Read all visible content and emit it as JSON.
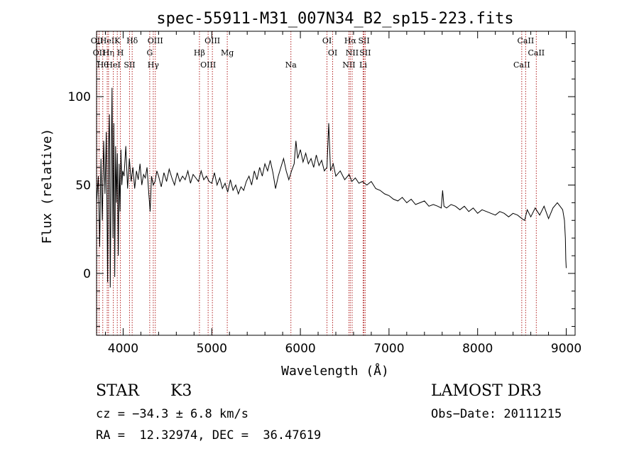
{
  "chart_data": {
    "type": "line",
    "title": "spec-55911-M31_007N34_B2_sp15-223.fits",
    "xlabel": "Wavelength (Å)",
    "ylabel": "Flux (relative)",
    "xlim": [
      3700,
      9100
    ],
    "ylim": [
      -35,
      137
    ],
    "xticks": [
      4000,
      5000,
      6000,
      7000,
      8000,
      9000
    ],
    "yticks": [
      0,
      50,
      100
    ],
    "grid": false,
    "line_color": "#000000",
    "marker_color": "#b22222",
    "series": [
      {
        "x": [
          3700,
          3720,
          3735,
          3750,
          3765,
          3780,
          3795,
          3810,
          3825,
          3835,
          3845,
          3855,
          3865,
          3875,
          3885,
          3895,
          3905,
          3915,
          3925,
          3935,
          3945,
          3955,
          3965,
          3975,
          3985,
          3995,
          4010,
          4030,
          4050,
          4070,
          4090,
          4110,
          4130,
          4150,
          4170,
          4190,
          4210,
          4230,
          4250,
          4270,
          4290,
          4305,
          4320,
          4340,
          4360,
          4380,
          4400,
          4430,
          4460,
          4490,
          4520,
          4550,
          4580,
          4610,
          4640,
          4670,
          4700,
          4730,
          4760,
          4790,
          4820,
          4850,
          4880,
          4910,
          4940,
          4970,
          5000,
          5030,
          5060,
          5090,
          5120,
          5150,
          5180,
          5210,
          5240,
          5270,
          5300,
          5330,
          5360,
          5390,
          5420,
          5450,
          5480,
          5510,
          5540,
          5570,
          5600,
          5630,
          5660,
          5690,
          5720,
          5750,
          5780,
          5810,
          5840,
          5870,
          5900,
          5930,
          5950,
          5970,
          6000,
          6030,
          6060,
          6090,
          6120,
          6150,
          6180,
          6210,
          6240,
          6270,
          6300,
          6320,
          6340,
          6370,
          6400,
          6450,
          6500,
          6550,
          6580,
          6620,
          6660,
          6700,
          6750,
          6800,
          6850,
          6900,
          6950,
          7000,
          7050,
          7100,
          7150,
          7200,
          7250,
          7300,
          7350,
          7400,
          7450,
          7500,
          7550,
          7590,
          7605,
          7620,
          7650,
          7700,
          7750,
          7800,
          7850,
          7900,
          7950,
          8000,
          8050,
          8100,
          8150,
          8200,
          8250,
          8300,
          8350,
          8400,
          8450,
          8500,
          8530,
          8560,
          8600,
          8650,
          8700,
          8750,
          8800,
          8850,
          8900,
          8930,
          8960,
          8980,
          8990,
          8995,
          9000
        ],
        "y": [
          40,
          55,
          15,
          65,
          30,
          75,
          45,
          80,
          -5,
          70,
          90,
          -8,
          60,
          105,
          20,
          85,
          -2,
          72,
          40,
          68,
          10,
          62,
          35,
          70,
          50,
          58,
          55,
          72,
          48,
          65,
          52,
          60,
          48,
          58,
          53,
          62,
          50,
          56,
          54,
          60,
          45,
          35,
          55,
          50,
          52,
          58,
          55,
          49,
          57,
          52,
          59,
          54,
          50,
          57,
          52,
          55,
          53,
          58,
          51,
          56,
          54,
          52,
          58,
          53,
          55,
          52,
          51,
          57,
          50,
          54,
          48,
          51,
          46,
          53,
          47,
          50,
          45,
          49,
          47,
          52,
          55,
          50,
          58,
          53,
          60,
          55,
          62,
          58,
          64,
          57,
          48,
          55,
          60,
          65,
          58,
          53,
          58,
          62,
          75,
          65,
          70,
          63,
          68,
          62,
          65,
          60,
          67,
          61,
          64,
          58,
          60,
          85,
          58,
          62,
          55,
          58,
          53,
          56,
          52,
          54,
          51,
          52,
          50,
          52,
          48,
          47,
          45,
          44,
          42,
          41,
          43,
          40,
          42,
          39,
          40,
          41,
          38,
          39,
          38,
          37,
          47,
          38,
          37,
          39,
          38,
          36,
          38,
          35,
          37,
          34,
          36,
          35,
          34,
          33,
          35,
          34,
          32,
          34,
          33,
          31,
          30,
          36,
          32,
          37,
          33,
          38,
          31,
          37,
          40,
          38,
          36,
          30,
          20,
          8,
          3
        ]
      }
    ],
    "markers": [
      {
        "x": 3705,
        "label": "OII"
      },
      {
        "x": 3728,
        "label": "OII"
      },
      {
        "x": 3770,
        "label": "Hθ"
      },
      {
        "x": 3820,
        "label": "HeI"
      },
      {
        "x": 3835,
        "label": "Hη"
      },
      {
        "x": 3889,
        "label": "HeI"
      },
      {
        "x": 3934,
        "label": "K"
      },
      {
        "x": 3969,
        "label": "H"
      },
      {
        "x": 4072,
        "label": "SII"
      },
      {
        "x": 4102,
        "label": "Hδ"
      },
      {
        "x": 4300,
        "label": "G"
      },
      {
        "x": 4340,
        "label": "Hγ"
      },
      {
        "x": 4363,
        "label": "OIII"
      },
      {
        "x": 4861,
        "label": "Hβ"
      },
      {
        "x": 4959,
        "label": "OIII"
      },
      {
        "x": 5007,
        "label": "OIII"
      },
      {
        "x": 5175,
        "label": "Mg"
      },
      {
        "x": 5893,
        "label": "Na"
      },
      {
        "x": 6300,
        "label": "OI"
      },
      {
        "x": 6364,
        "label": "OI"
      },
      {
        "x": 6548,
        "label": "NII"
      },
      {
        "x": 6563,
        "label": "Hα"
      },
      {
        "x": 6584,
        "label": "NII"
      },
      {
        "x": 6708,
        "label": "Li"
      },
      {
        "x": 6717,
        "label": "SII"
      },
      {
        "x": 6731,
        "label": "SII"
      },
      {
        "x": 8498,
        "label": "CaII"
      },
      {
        "x": 8542,
        "label": "CaII"
      },
      {
        "x": 8662,
        "label": "CaII"
      }
    ]
  },
  "info": {
    "class": "STAR",
    "subclass": "K3",
    "cz": "cz = −34.3 ± 6.8 km/s",
    "coords": "RA =  12.32974, DEC =  36.47619",
    "survey": "LAMOST DR3",
    "obs_date": "Obs−Date: 20111215"
  }
}
